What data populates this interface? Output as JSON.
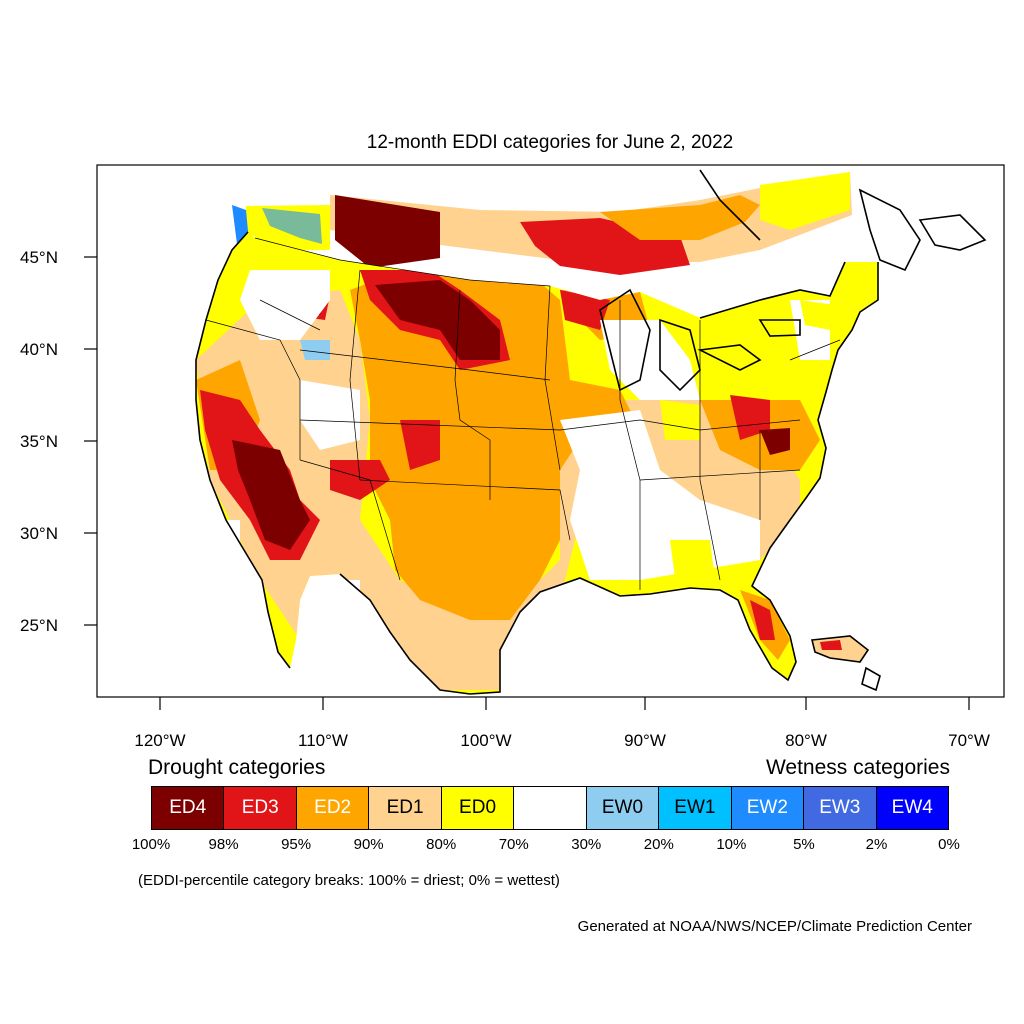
{
  "title": "12-month EDDI categories for June 2, 2022",
  "axes": {
    "lat_labels": [
      "45°N",
      "40°N",
      "35°N",
      "30°N",
      "25°N"
    ],
    "lon_labels": [
      "120°W",
      "110°W",
      "100°W",
      "90°W",
      "80°W",
      "70°W"
    ]
  },
  "map": {
    "region": "Contiguous United States",
    "lat_range": [
      21,
      50
    ],
    "lon_range": [
      -124,
      -68.5
    ],
    "ocean_color": "#ffffff",
    "boundary_color": "#000000"
  },
  "legend": {
    "drought_heading": "Drought categories",
    "wetness_heading": "Wetness categories",
    "categories": [
      {
        "label": "ED4",
        "color": "#7d0000",
        "text_color": "#ffffff"
      },
      {
        "label": "ED3",
        "color": "#e11417",
        "text_color": "#ffffff"
      },
      {
        "label": "ED2",
        "color": "#ffa500",
        "text_color": "#ffffff"
      },
      {
        "label": "ED1",
        "color": "#ffd38f",
        "text_color": "#000000"
      },
      {
        "label": "ED0",
        "color": "#ffff00",
        "text_color": "#000000"
      },
      {
        "label": "",
        "color": "#ffffff",
        "text_color": "#000000"
      },
      {
        "label": "EW0",
        "color": "#8fcdf0",
        "text_color": "#000000"
      },
      {
        "label": "EW1",
        "color": "#00c0ff",
        "text_color": "#000000"
      },
      {
        "label": "EW2",
        "color": "#1e8cff",
        "text_color": "#ffffff"
      },
      {
        "label": "EW3",
        "color": "#4169e1",
        "text_color": "#ffffff"
      },
      {
        "label": "EW4",
        "color": "#0000ff",
        "text_color": "#ffffff"
      }
    ],
    "percent_breaks": [
      "100%",
      "98%",
      "95%",
      "90%",
      "80%",
      "70%",
      "30%",
      "20%",
      "10%",
      "5%",
      "2%",
      "0%"
    ]
  },
  "note": "(EDDI-percentile category breaks: 100% = driest; 0% = wettest)",
  "credit": "Generated at NOAA/NWS/NCEP/Climate Prediction Center"
}
